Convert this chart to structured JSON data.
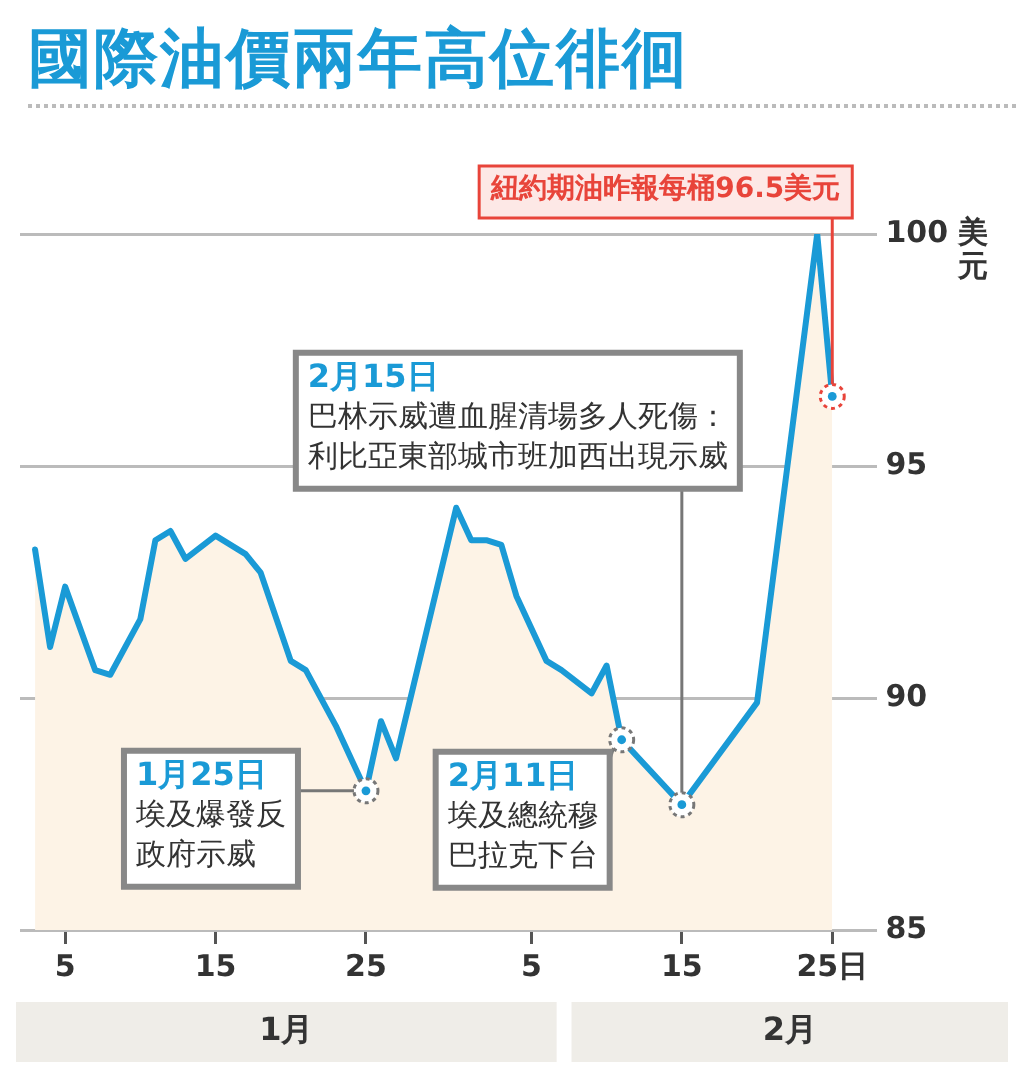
{
  "chart_data": {
    "type": "area",
    "title": "國際油價兩年高位徘徊",
    "ylabel": "美元",
    "x": [
      "--01-03",
      "--01-04",
      "--01-05",
      "--01-07",
      "--01-08",
      "--01-10",
      "--01-11",
      "--01-12",
      "--01-13",
      "--01-15",
      "--01-17",
      "--01-18",
      "--01-20",
      "--01-21",
      "--01-23",
      "--01-25",
      "--01-26",
      "--01-27",
      "--01-31",
      "--02-01",
      "--02-02",
      "--02-03",
      "--02-04",
      "--02-06",
      "--02-07",
      "--02-09",
      "--02-10",
      "--02-11",
      "--02-15",
      "--02-20",
      "--02-24",
      "--02-25"
    ],
    "values": [
      93.2,
      91.1,
      92.4,
      90.6,
      90.5,
      91.7,
      93.4,
      93.6,
      93.0,
      93.5,
      93.1,
      92.7,
      90.8,
      90.6,
      89.4,
      88.0,
      89.5,
      88.7,
      94.1,
      93.4,
      93.4,
      93.3,
      92.2,
      90.8,
      90.6,
      90.1,
      90.7,
      89.1,
      87.7,
      89.9,
      100.0,
      96.5
    ],
    "color": "#1a9ad6",
    "xlim": [
      "--01-02",
      "--02-28"
    ],
    "xticks": [
      {
        "value": "--01-05",
        "label": "5"
      },
      {
        "value": "--01-15",
        "label": "15"
      },
      {
        "value": "--01-25",
        "label": "25"
      },
      {
        "value": "--02-05",
        "label": "5"
      },
      {
        "value": "--02-15",
        "label": "15"
      },
      {
        "value": "--02-25",
        "label": "25日"
      }
    ],
    "ylim": [
      85,
      100
    ],
    "yticks": [
      85,
      90,
      95,
      100
    ],
    "grid": "y",
    "legend": false,
    "marker": "none",
    "line_style": "solid",
    "annotations": [
      {
        "text": "2月15日巴林示威遭血腥清場多人死傷：利比亞東部城市班加西出現示威",
        "x": "--02-15",
        "y": 87.7
      },
      {
        "text": "1月25日埃及爆發反政府示威",
        "x": "--01-25",
        "y": 88.0
      },
      {
        "text": "2月11日埃及總統穆巴拉克下台",
        "x": "--02-11",
        "y": 89.1
      },
      {
        "text": "紐約期油昨報每桶96.5美元",
        "x": "--02-25",
        "y": 96.5
      },
      "1月",
      "2月"
    ]
  }
}
